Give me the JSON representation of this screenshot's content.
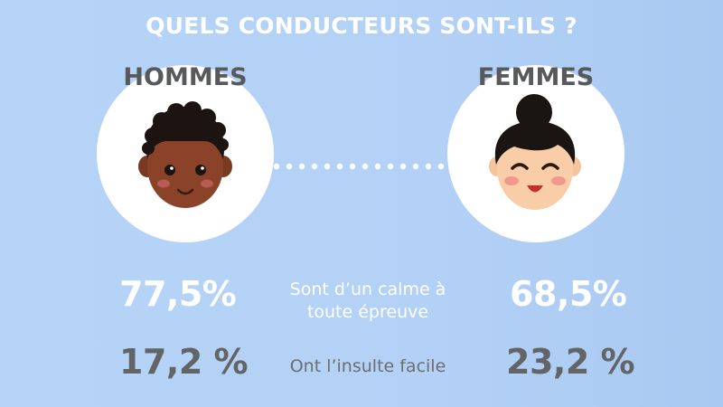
{
  "title": "QUELS CONDUCTEURS SONT-ILS ?",
  "genders": {
    "men": "HOMMES",
    "women": "FEMMES"
  },
  "icons": [
    "man-face-icon",
    "woman-face-icon",
    "dotted-connector"
  ],
  "rows": [
    {
      "men": "77,5%",
      "label_line1": "Sont d’un calme à",
      "label_line2": "toute épreuve",
      "women": "68,5%"
    },
    {
      "men": "17,2 %",
      "label": "Ont l’insulte facile",
      "women": "23,2 %"
    }
  ],
  "colors": {
    "background": "#b3d1f6",
    "white": "#ffffff",
    "gray": "#636466"
  }
}
